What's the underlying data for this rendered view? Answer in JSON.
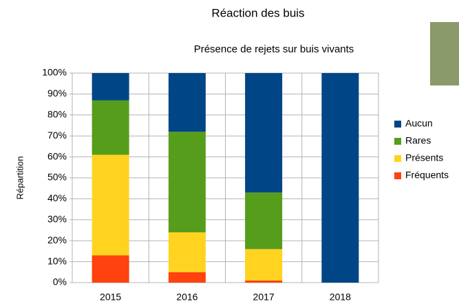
{
  "chart_data": {
    "type": "stacked_bar",
    "title": "Réaction des buis",
    "subtitle": "Présence de rejets sur buis vivants",
    "y_label": "Répartition",
    "categories": [
      "2015",
      "2016",
      "2017",
      "2018"
    ],
    "series": [
      {
        "name": "Aucun",
        "color": "#004586",
        "values": [
          13,
          28,
          57,
          100
        ]
      },
      {
        "name": "Rares",
        "color": "#579d1c",
        "values": [
          26,
          48,
          27,
          0
        ]
      },
      {
        "name": "Présents",
        "color": "#ffd320",
        "values": [
          48,
          19,
          15,
          0
        ]
      },
      {
        "name": "Fréquents",
        "color": "#ff420e",
        "values": [
          13,
          5,
          1,
          0
        ]
      }
    ],
    "ylim": [
      0,
      100
    ],
    "yticks": [
      {
        "value": 0,
        "label": "0%"
      },
      {
        "value": 10,
        "label": "10%"
      },
      {
        "value": 20,
        "label": "20%"
      },
      {
        "value": 30,
        "label": "30%"
      },
      {
        "value": 40,
        "label": "40%"
      },
      {
        "value": 50,
        "label": "50%"
      },
      {
        "value": 60,
        "label": "60%"
      },
      {
        "value": 70,
        "label": "70%"
      },
      {
        "value": 80,
        "label": "80%"
      },
      {
        "value": 90,
        "label": "90%"
      },
      {
        "value": 100,
        "label": "100%"
      }
    ],
    "grid": true,
    "legend": "right"
  }
}
